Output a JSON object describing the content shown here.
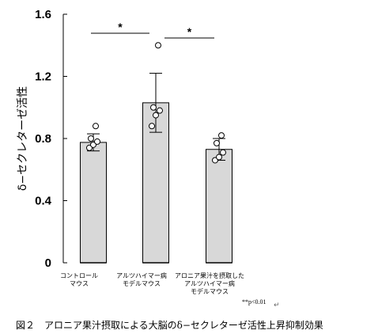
{
  "chart_data": {
    "type": "bar",
    "ylabel": "δ−セクレターゼ活性",
    "ylim": [
      0,
      1.6
    ],
    "yticks": [
      "0",
      "0.4",
      "0.8",
      "1.2",
      "1.6"
    ],
    "categories": [
      [
        "コントロール",
        "マウス"
      ],
      [
        "アルツハイマー病",
        "モデルマウス"
      ],
      [
        "アロニア果汁を摂取した",
        "アルツハイマー病",
        "モデルマウス"
      ]
    ],
    "values": [
      0.775,
      1.03,
      0.73
    ],
    "errors": [
      0.055,
      0.19,
      0.07
    ],
    "points": [
      [
        0.74,
        0.76,
        0.78,
        0.8,
        0.88
      ],
      [
        0.88,
        0.95,
        0.98,
        1.0,
        1.4
      ],
      [
        0.66,
        0.68,
        0.71,
        0.77,
        0.82
      ]
    ],
    "significance": [
      {
        "from": 0,
        "to": 1,
        "label": "*"
      },
      {
        "from": 1,
        "to": 2,
        "label": "*"
      }
    ],
    "bar_color": "#d8d8d8",
    "footnote": "**p<0.01"
  },
  "return_mark": "↵",
  "caption": "図２　アロニア果汁摂取による大脳のδ−セクレターゼ活性上昇抑制効果"
}
